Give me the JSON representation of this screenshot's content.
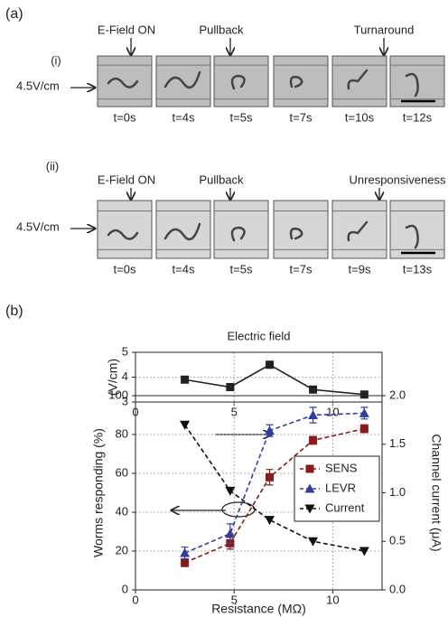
{
  "panel_a": {
    "label": "(a)",
    "rows": [
      {
        "label": "(i)",
        "field": "4.5V/cm",
        "events": [
          "E-Field ON",
          "Pullback",
          "Turnaround"
        ],
        "times": [
          "t=0s",
          "t=4s",
          "t=5s",
          "t=7s",
          "t=10s",
          "t=12s"
        ]
      },
      {
        "label": "(ii)",
        "field": "4.5V/cm",
        "events": [
          "E-Field ON",
          "Pullback",
          "Unresponsiveness"
        ],
        "times": [
          "t=0s",
          "t=4s",
          "t=5s",
          "t=7s",
          "t=9s",
          "t=13s"
        ]
      }
    ]
  },
  "panel_b": {
    "label": "(b)"
  },
  "chart_data": [
    {
      "type": "line",
      "title": "Electric field",
      "y_label": "(V/cm)",
      "x": [
        2.5,
        4.8,
        6.8,
        9,
        11.6
      ],
      "series": [
        {
          "name": "Electric field",
          "color": "#222222",
          "marker": "square",
          "dashed": false,
          "values": [
            3.9,
            3.6,
            4.5,
            3.5,
            3.3
          ]
        }
      ],
      "xlim": [
        0,
        12.5
      ],
      "xticks": [
        0,
        5,
        10
      ],
      "ylim": [
        3,
        5
      ],
      "yticks": [
        3,
        4,
        5
      ],
      "grid": true
    },
    {
      "type": "line",
      "x_label": "Resistance (MΩ)",
      "y_label": "Worms responding (%)",
      "y2_label": "Channel current (μA)",
      "x": [
        2.5,
        4.8,
        6.8,
        9,
        11.6
      ],
      "series": [
        {
          "name": "SENS",
          "color": "#8b1a1a",
          "marker": "square",
          "dashed": true,
          "values": [
            14,
            24,
            58,
            77,
            83
          ],
          "errors": [
            2,
            3,
            4,
            2,
            2
          ]
        },
        {
          "name": "LEVR",
          "color": "#2e3f9e",
          "marker": "triangle-up",
          "dashed": true,
          "values": [
            19,
            29,
            82,
            90,
            91
          ],
          "errors": [
            3,
            5,
            3,
            4,
            3
          ]
        },
        {
          "name": "Current",
          "color": "#111111",
          "marker": "triangle-down",
          "dashed": true,
          "axis": "y2",
          "values": [
            1.7,
            1.02,
            0.72,
            0.5,
            0.4
          ]
        }
      ],
      "xlim": [
        0,
        12.5
      ],
      "xticks": [
        0,
        5,
        10
      ],
      "ylim": [
        0,
        100
      ],
      "yticks": [
        0,
        20,
        40,
        60,
        80,
        100
      ],
      "y2lim": [
        0,
        2
      ],
      "y2ticks": [
        {
          "value": 0,
          "label": "0.0"
        },
        {
          "value": 0.5,
          "label": "0.5"
        },
        {
          "value": 1,
          "label": "1.0"
        },
        {
          "value": 1.5,
          "label": "1.5"
        },
        {
          "value": 2,
          "label": "2.0"
        }
      ],
      "grid": true,
      "legend": "center right"
    }
  ]
}
